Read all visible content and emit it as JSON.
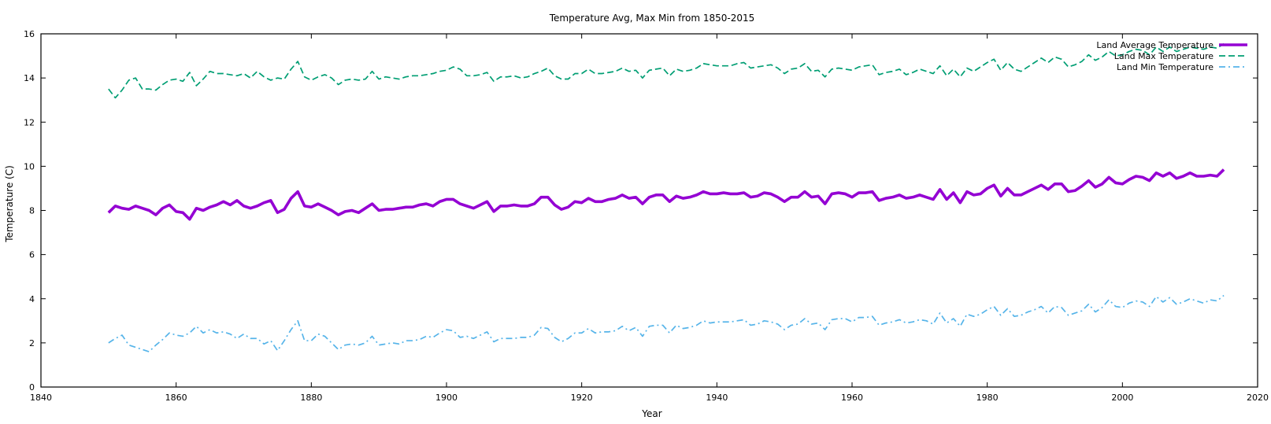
{
  "chart_data": {
    "type": "line",
    "title": "Temperature Avg, Max  Min from 1850-2015",
    "xlabel": "Year",
    "ylabel": "Temperature (C)",
    "xlim": [
      1840,
      2020
    ],
    "ylim": [
      0,
      16
    ],
    "x_ticks": [
      "1840",
      "1860",
      "1880",
      "1900",
      "1920",
      "1940",
      "1960",
      "1980",
      "2000",
      "2020"
    ],
    "y_ticks": [
      "0",
      "2",
      "4",
      "6",
      "8",
      "10",
      "12",
      "14",
      "16"
    ],
    "grid": false,
    "legend_position": "top-right",
    "x_start": 1850,
    "x_end": 2015,
    "series": [
      {
        "name": "Land Average Temperature",
        "color": "#9400d3",
        "style": "solid-thick",
        "values": [
          7.9,
          8.2,
          8.1,
          8.05,
          8.2,
          8.1,
          8.0,
          7.8,
          8.1,
          8.25,
          7.95,
          7.9,
          7.6,
          8.1,
          8.0,
          8.15,
          8.25,
          8.4,
          8.25,
          8.45,
          8.2,
          8.1,
          8.2,
          8.35,
          8.45,
          7.9,
          8.05,
          8.55,
          8.85,
          8.2,
          8.15,
          8.3,
          8.15,
          8.0,
          7.8,
          7.95,
          8.0,
          7.9,
          8.1,
          8.3,
          8.0,
          8.05,
          8.05,
          8.1,
          8.15,
          8.15,
          8.25,
          8.3,
          8.2,
          8.4,
          8.5,
          8.5,
          8.3,
          8.2,
          8.1,
          8.25,
          8.4,
          7.95,
          8.2,
          8.2,
          8.25,
          8.2,
          8.2,
          8.3,
          8.6,
          8.6,
          8.25,
          8.05,
          8.15,
          8.4,
          8.35,
          8.55,
          8.4,
          8.4,
          8.5,
          8.55,
          8.7,
          8.55,
          8.6,
          8.3,
          8.6,
          8.7,
          8.7,
          8.4,
          8.65,
          8.55,
          8.6,
          8.7,
          8.85,
          8.75,
          8.75,
          8.8,
          8.75,
          8.75,
          8.8,
          8.6,
          8.65,
          8.8,
          8.75,
          8.6,
          8.4,
          8.6,
          8.6,
          8.85,
          8.6,
          8.65,
          8.3,
          8.75,
          8.8,
          8.75,
          8.6,
          8.8,
          8.8,
          8.85,
          8.45,
          8.55,
          8.6,
          8.7,
          8.55,
          8.6,
          8.7,
          8.6,
          8.5,
          8.95,
          8.5,
          8.8,
          8.35,
          8.85,
          8.7,
          8.75,
          9.0,
          9.15,
          8.65,
          9.0,
          8.7,
          8.7,
          8.85,
          9.0,
          9.15,
          8.95,
          9.2,
          9.2,
          8.85,
          8.9,
          9.1,
          9.35,
          9.05,
          9.2,
          9.5,
          9.25,
          9.2,
          9.4,
          9.55,
          9.5,
          9.35,
          9.7,
          9.55,
          9.7,
          9.45,
          9.55,
          9.7,
          9.55,
          9.55,
          9.6,
          9.55,
          9.85
        ]
      },
      {
        "name": "Land Max Temperature",
        "color": "#009e73",
        "style": "dashed",
        "values": [
          13.5,
          13.1,
          13.45,
          13.9,
          14.0,
          13.5,
          13.5,
          13.45,
          13.7,
          13.9,
          13.95,
          13.85,
          14.25,
          13.65,
          13.95,
          14.3,
          14.2,
          14.2,
          14.15,
          14.1,
          14.2,
          14.0,
          14.3,
          14.05,
          13.9,
          14.0,
          13.95,
          14.4,
          14.75,
          14.05,
          13.9,
          14.05,
          14.15,
          14.0,
          13.7,
          13.9,
          13.95,
          13.9,
          13.95,
          14.3,
          13.95,
          14.05,
          14.0,
          13.95,
          14.05,
          14.1,
          14.1,
          14.15,
          14.2,
          14.3,
          14.35,
          14.5,
          14.4,
          14.1,
          14.1,
          14.15,
          14.25,
          13.85,
          14.05,
          14.05,
          14.1,
          14.0,
          14.05,
          14.2,
          14.3,
          14.45,
          14.1,
          13.95,
          13.95,
          14.2,
          14.2,
          14.4,
          14.2,
          14.2,
          14.25,
          14.3,
          14.45,
          14.3,
          14.35,
          14.0,
          14.35,
          14.4,
          14.45,
          14.1,
          14.4,
          14.3,
          14.35,
          14.45,
          14.65,
          14.6,
          14.55,
          14.55,
          14.55,
          14.65,
          14.7,
          14.45,
          14.5,
          14.55,
          14.6,
          14.45,
          14.2,
          14.4,
          14.45,
          14.65,
          14.3,
          14.35,
          14.05,
          14.4,
          14.45,
          14.4,
          14.35,
          14.5,
          14.55,
          14.6,
          14.15,
          14.25,
          14.3,
          14.4,
          14.15,
          14.25,
          14.4,
          14.3,
          14.2,
          14.55,
          14.1,
          14.4,
          14.05,
          14.45,
          14.3,
          14.5,
          14.7,
          14.85,
          14.35,
          14.7,
          14.4,
          14.3,
          14.5,
          14.7,
          14.9,
          14.7,
          14.95,
          14.85,
          14.5,
          14.6,
          14.75,
          15.05,
          14.8,
          14.95,
          15.2,
          15.0,
          15.05,
          15.2,
          15.3,
          15.25,
          15.05,
          15.4,
          15.2,
          15.4,
          15.2,
          15.3,
          15.4,
          15.35,
          15.3,
          15.4,
          15.35,
          15.55
        ]
      },
      {
        "name": "Land Min Temperature",
        "color": "#56b4e9",
        "style": "dash-dot",
        "values": [
          2.0,
          2.2,
          2.35,
          1.9,
          1.8,
          1.7,
          1.6,
          1.9,
          2.15,
          2.45,
          2.35,
          2.3,
          2.45,
          2.75,
          2.45,
          2.6,
          2.45,
          2.5,
          2.4,
          2.2,
          2.4,
          2.2,
          2.2,
          1.95,
          2.1,
          1.65,
          2.1,
          2.6,
          3.0,
          2.1,
          2.1,
          2.4,
          2.3,
          2.0,
          1.7,
          1.9,
          1.95,
          1.9,
          2.0,
          2.3,
          1.9,
          1.95,
          2.0,
          1.95,
          2.1,
          2.1,
          2.15,
          2.3,
          2.25,
          2.45,
          2.6,
          2.55,
          2.25,
          2.3,
          2.2,
          2.35,
          2.5,
          2.05,
          2.2,
          2.2,
          2.2,
          2.25,
          2.25,
          2.35,
          2.7,
          2.65,
          2.25,
          2.05,
          2.2,
          2.45,
          2.45,
          2.65,
          2.45,
          2.5,
          2.5,
          2.55,
          2.75,
          2.55,
          2.7,
          2.3,
          2.75,
          2.8,
          2.8,
          2.45,
          2.8,
          2.65,
          2.7,
          2.8,
          3.0,
          2.9,
          2.95,
          2.95,
          2.95,
          3.0,
          3.05,
          2.8,
          2.85,
          3.0,
          2.95,
          2.85,
          2.6,
          2.8,
          2.85,
          3.1,
          2.85,
          2.9,
          2.6,
          3.05,
          3.1,
          3.1,
          2.95,
          3.15,
          3.15,
          3.2,
          2.8,
          2.9,
          2.95,
          3.05,
          2.9,
          2.95,
          3.05,
          3.0,
          2.85,
          3.35,
          2.9,
          3.1,
          2.75,
          3.3,
          3.2,
          3.3,
          3.5,
          3.65,
          3.25,
          3.55,
          3.2,
          3.25,
          3.4,
          3.5,
          3.65,
          3.35,
          3.65,
          3.6,
          3.25,
          3.35,
          3.45,
          3.75,
          3.4,
          3.6,
          3.95,
          3.65,
          3.6,
          3.8,
          3.9,
          3.85,
          3.65,
          4.1,
          3.85,
          4.05,
          3.75,
          3.85,
          4.0,
          3.9,
          3.8,
          3.95,
          3.9,
          4.15
        ]
      }
    ]
  }
}
